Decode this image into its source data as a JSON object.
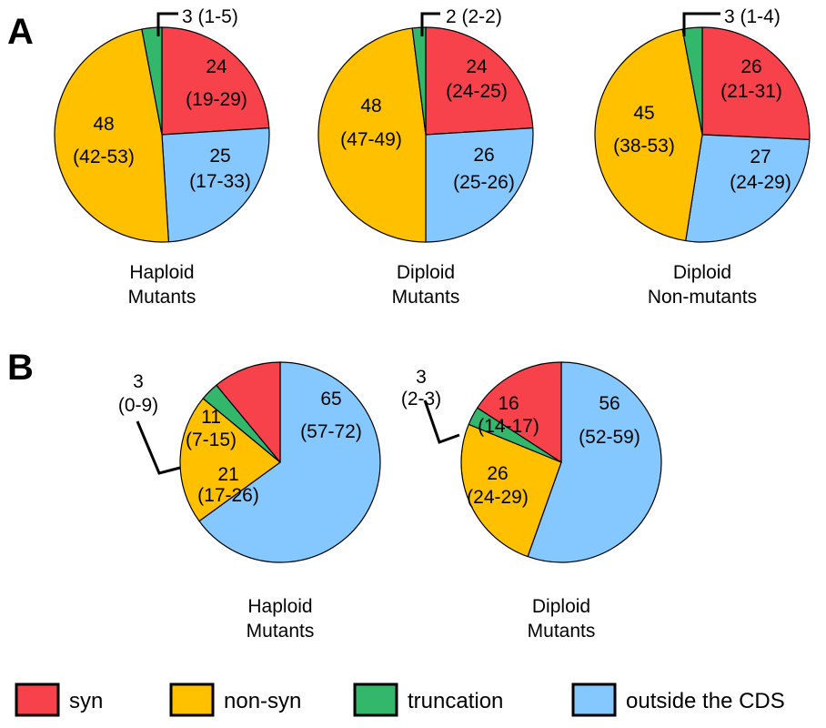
{
  "panels": [
    {
      "letter": "A"
    },
    {
      "letter": "B"
    }
  ],
  "colors": {
    "syn": "#f7414b",
    "non-syn": "#ffc000",
    "truncation": "#33b86b",
    "outside the CDS": "#85c8ff"
  },
  "legend": [
    {
      "key": "syn",
      "label": "syn"
    },
    {
      "key": "non-syn",
      "label": "non-syn"
    },
    {
      "key": "truncation",
      "label": "truncation"
    },
    {
      "key": "outside the CDS",
      "label": "outside the CDS"
    }
  ],
  "chart_data": [
    {
      "type": "pie",
      "panel": "A",
      "title": [
        "Haploid",
        "Mutants"
      ],
      "slices": [
        {
          "category": "syn",
          "value": 24,
          "range": "(19-29)"
        },
        {
          "category": "outside the CDS",
          "value": 25,
          "range": "(17-33)"
        },
        {
          "category": "non-syn",
          "value": 48,
          "range": "(42-53)"
        },
        {
          "category": "truncation",
          "value": 3,
          "range": "(1-5)",
          "label": "3 (1-5)"
        }
      ]
    },
    {
      "type": "pie",
      "panel": "A",
      "title": [
        "Diploid",
        "Mutants"
      ],
      "slices": [
        {
          "category": "syn",
          "value": 24,
          "range": "(24-25)"
        },
        {
          "category": "outside the CDS",
          "value": 26,
          "range": "(25-26)"
        },
        {
          "category": "non-syn",
          "value": 48,
          "range": "(47-49)"
        },
        {
          "category": "truncation",
          "value": 2,
          "range": "(2-2)",
          "label": "2 (2-2)"
        }
      ]
    },
    {
      "type": "pie",
      "panel": "A",
      "title": [
        "Diploid",
        "Non-mutants"
      ],
      "slices": [
        {
          "category": "syn",
          "value": 26,
          "range": "(21-31)"
        },
        {
          "category": "outside the CDS",
          "value": 27,
          "range": "(24-29)"
        },
        {
          "category": "non-syn",
          "value": 45,
          "range": "(38-53)"
        },
        {
          "category": "truncation",
          "value": 3,
          "range": "(1-4)",
          "label": "3 (1-4)"
        }
      ]
    },
    {
      "type": "pie",
      "panel": "B",
      "title": [
        "Haploid",
        "Mutants"
      ],
      "slices": [
        {
          "category": "outside the CDS",
          "value": 65,
          "range": "(57-72)"
        },
        {
          "category": "non-syn",
          "value": 21,
          "range": "(17-26)"
        },
        {
          "category": "truncation",
          "value": 3,
          "range": "(0-9)"
        },
        {
          "category": "syn",
          "value": 11,
          "range": "(7-15)"
        }
      ]
    },
    {
      "type": "pie",
      "panel": "B",
      "title": [
        "Diploid",
        "Mutants"
      ],
      "slices": [
        {
          "category": "outside the CDS",
          "value": 56,
          "range": "(52-59)"
        },
        {
          "category": "non-syn",
          "value": 26,
          "range": "(24-29)"
        },
        {
          "category": "truncation",
          "value": 3,
          "range": "(2-3)"
        },
        {
          "category": "syn",
          "value": 16,
          "range": "(14-17)"
        }
      ]
    }
  ]
}
